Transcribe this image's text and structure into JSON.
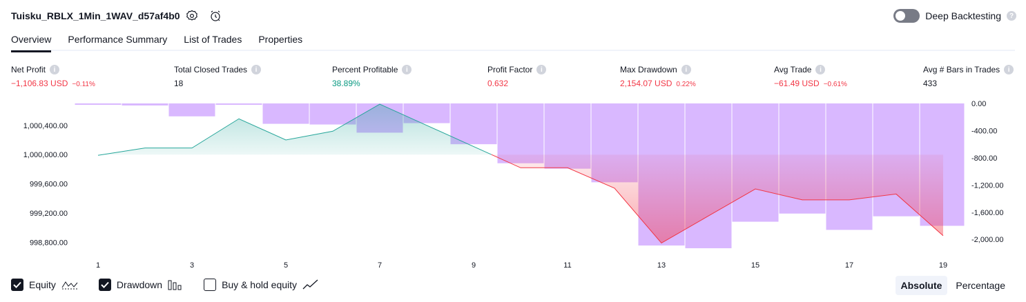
{
  "strategy": {
    "title": "Tuisku_RBLX_1Min_1WAV_d57af4b0"
  },
  "deep_backtesting": {
    "label": "Deep Backtesting",
    "enabled": false,
    "help": "?"
  },
  "tabs": [
    {
      "label": "Overview",
      "active": true
    },
    {
      "label": "Performance Summary",
      "active": false
    },
    {
      "label": "List of Trades",
      "active": false
    },
    {
      "label": "Properties",
      "active": false
    }
  ],
  "metrics": [
    {
      "label": "Net Profit",
      "value": "−1,106.83 USD",
      "sub": "−0.11%",
      "tone": "neg"
    },
    {
      "label": "Total Closed Trades",
      "value": "18",
      "sub": "",
      "tone": "neutral"
    },
    {
      "label": "Percent Profitable",
      "value": "38.89%",
      "sub": "",
      "tone": "pos"
    },
    {
      "label": "Profit Factor",
      "value": "0.632",
      "sub": "",
      "tone": "neg"
    },
    {
      "label": "Max Drawdown",
      "value": "2,154.07 USD",
      "sub": "0.22%",
      "tone": "neg"
    },
    {
      "label": "Avg Trade",
      "value": "−61.49 USD",
      "sub": "−0.61%",
      "tone": "neg"
    },
    {
      "label": "Avg # Bars in Trades",
      "value": "433",
      "sub": "",
      "tone": "neutral"
    }
  ],
  "colors": {
    "equity_up": "#26a69a",
    "equity_down": "#f23645",
    "drawdown_bar": "#d9b8ff",
    "axis_text": "#131722"
  },
  "chart_data": {
    "type": "line",
    "x": [
      1,
      2,
      3,
      4,
      5,
      6,
      7,
      8,
      9,
      10,
      11,
      12,
      13,
      14,
      15,
      16,
      17,
      18,
      19
    ],
    "x_ticks": [
      "1",
      "3",
      "5",
      "7",
      "9",
      "11",
      "13",
      "15",
      "17",
      "19"
    ],
    "series": [
      {
        "name": "Equity",
        "axis": "left",
        "values": [
          999990,
          1000090,
          1000090,
          1000490,
          1000200,
          1000320,
          1000690,
          1000400,
          1000110,
          999820,
          999820,
          999540,
          998790,
          999160,
          999530,
          999380,
          999380,
          999460,
          998890
        ]
      },
      {
        "name": "Drawdown",
        "type": "bar",
        "axis": "right",
        "values": [
          0,
          -30,
          -190,
          0,
          -300,
          -310,
          -430,
          -290,
          -600,
          -880,
          -960,
          -1160,
          -2090,
          -2130,
          -1740,
          -1620,
          -1860,
          -1660,
          -1800
        ]
      }
    ],
    "left_axis": {
      "ticks": [
        "1,000,400.00",
        "1,000,000.00",
        "999,600.00",
        "999,200.00",
        "998,800.00"
      ],
      "ylim": [
        998700,
        1000700
      ]
    },
    "right_axis": {
      "ticks": [
        "0.00",
        "-400.00",
        "-800.00",
        "-1,200.00",
        "-1,600.00",
        "-2,000.00"
      ],
      "ylim": [
        -2150,
        0
      ]
    },
    "baseline": 1000000,
    "grid": false
  },
  "legend": [
    {
      "label": "Equity",
      "checked": true,
      "icon": "equity-line-icon"
    },
    {
      "label": "Drawdown",
      "checked": true,
      "icon": "drawdown-bars-icon"
    },
    {
      "label": "Buy & hold equity",
      "checked": false,
      "icon": "buy-hold-line-icon"
    }
  ],
  "scale_modes": [
    {
      "label": "Absolute",
      "active": true
    },
    {
      "label": "Percentage",
      "active": false
    }
  ]
}
